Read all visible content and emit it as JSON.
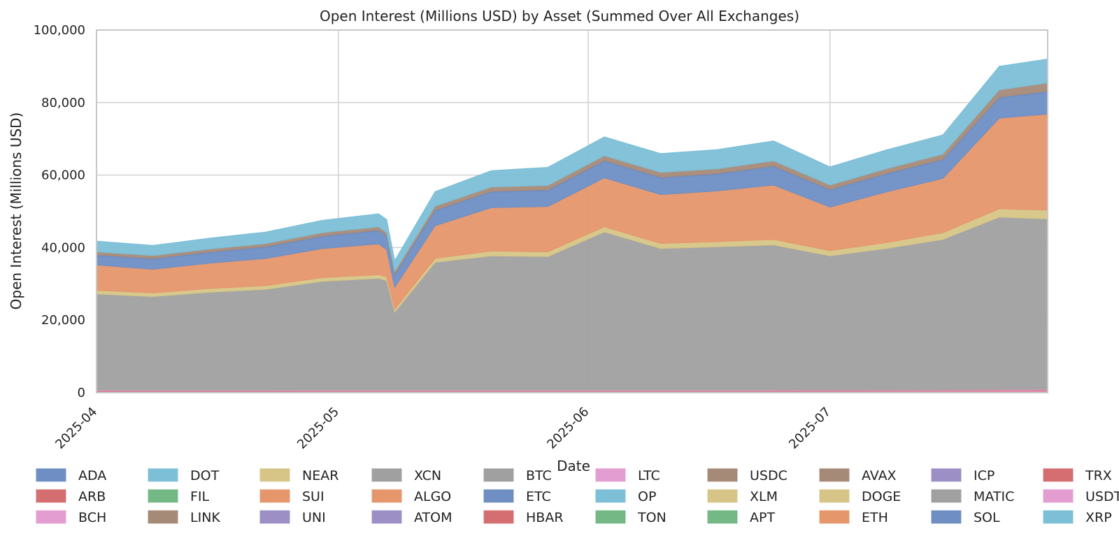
{
  "chart_data": {
    "type": "area",
    "stacked": true,
    "title": "Open Interest (Millions USD) by Asset (Summed Over All Exchanges)",
    "xlabel": "Date",
    "ylabel": "Open Interest (Millions USD)",
    "x_ticks": [
      "2025-04",
      "2025-05",
      "2025-06",
      "2025-07"
    ],
    "y_ticks": [
      "0",
      "20,000",
      "40,000",
      "60,000",
      "80,000",
      "100,000"
    ],
    "ylim": [
      0,
      100000
    ],
    "x_range_days": [
      0,
      118
    ],
    "grid": true,
    "legend_position": "bottom",
    "anchor_days": [
      0,
      7,
      14,
      21,
      28,
      35,
      36,
      37,
      42,
      49,
      56,
      63,
      70,
      77,
      84,
      91,
      98,
      105,
      112,
      118
    ],
    "series": [
      {
        "name": "BCH",
        "color": "#e49dd0",
        "values": [
          300,
          300,
          300,
          300,
          320,
          320,
          320,
          320,
          330,
          330,
          330,
          330,
          330,
          330,
          340,
          350,
          360,
          380,
          400,
          420
        ]
      },
      {
        "name": "HBAR",
        "color": "#d46e71",
        "values": [
          200,
          200,
          200,
          200,
          200,
          200,
          200,
          200,
          200,
          200,
          200,
          200,
          200,
          200,
          200,
          200,
          200,
          200,
          250,
          250
        ]
      },
      {
        "name": "USDT",
        "color": "#e49dd0",
        "values": [
          200,
          200,
          200,
          200,
          200,
          200,
          200,
          200,
          200,
          200,
          200,
          200,
          200,
          200,
          200,
          200,
          200,
          200,
          250,
          250
        ]
      },
      {
        "name": "BTC",
        "color": "#a0a0a0",
        "values": [
          26500,
          25800,
          27000,
          27800,
          30000,
          30800,
          30200,
          21500,
          35200,
          37000,
          36800,
          43600,
          39000,
          39500,
          40000,
          37000,
          39000,
          41500,
          47500,
          47000
        ]
      },
      {
        "name": "DOGE",
        "color": "#d6c586",
        "values": [
          1000,
          1000,
          1000,
          1000,
          1000,
          1000,
          1000,
          800,
          1100,
          1300,
          1300,
          1400,
          1400,
          1400,
          1500,
          1400,
          1600,
          1800,
          2300,
          2400
        ]
      },
      {
        "name": "ETH",
        "color": "#e5966b",
        "values": [
          7000,
          6500,
          7000,
          7500,
          8000,
          8500,
          7500,
          6000,
          9000,
          12000,
          12500,
          13500,
          13500,
          14000,
          15000,
          12000,
          14000,
          15000,
          25000,
          26500
        ]
      },
      {
        "name": "SOL",
        "color": "#6e8ec4",
        "values": [
          2500,
          2700,
          2800,
          3000,
          3200,
          3500,
          3500,
          3300,
          4000,
          4200,
          4300,
          4500,
          4500,
          4500,
          5000,
          4600,
          4800,
          5000,
          5500,
          6000
        ]
      },
      {
        "name": "ETC",
        "color": "#6e8ec4",
        "values": [
          300,
          300,
          300,
          300,
          300,
          300,
          300,
          300,
          300,
          300,
          300,
          300,
          300,
          300,
          300,
          300,
          300,
          300,
          300,
          300
        ]
      },
      {
        "name": "LINK",
        "color": "#a68a78",
        "values": [
          800,
          800,
          800,
          800,
          900,
          900,
          900,
          800,
          1100,
          1200,
          1200,
          1300,
          1300,
          1300,
          1400,
          1200,
          1300,
          1400,
          2000,
          2300
        ]
      },
      {
        "name": "XRP",
        "color": "#7cbfd6",
        "values": [
          3000,
          2800,
          3000,
          3200,
          3400,
          3600,
          3600,
          3000,
          4000,
          4500,
          5000,
          5200,
          5200,
          5300,
          5500,
          5000,
          5200,
          5300,
          6500,
          6600
        ]
      }
    ],
    "legend": [
      "ADA",
      "ARB",
      "BCH",
      "DOT",
      "FIL",
      "LINK",
      "NEAR",
      "SUI",
      "UNI",
      "XCN",
      "ALGO",
      "ATOM",
      "BTC",
      "ETC",
      "HBAR",
      "LTC",
      "OP",
      "TON",
      "USDC",
      "XLM",
      "APT",
      "AVAX",
      "DOGE",
      "ETH",
      "ICP",
      "MATIC",
      "SOL",
      "TRX",
      "USDT",
      "XRP"
    ],
    "legend_colors": [
      "#6e8ec4",
      "#d46e71",
      "#e49dd0",
      "#7cbfd6",
      "#74b886",
      "#a68a78",
      "#d6c586",
      "#e5966b",
      "#9c8fc5",
      "#a0a0a0",
      "#e5966b",
      "#9c8fc5",
      "#a0a0a0",
      "#6e8ec4",
      "#d46e71",
      "#e49dd0",
      "#7cbfd6",
      "#74b886",
      "#a68a78",
      "#d6c586",
      "#74b886",
      "#a68a78",
      "#d6c586",
      "#e5966b",
      "#9c8fc5",
      "#a0a0a0",
      "#6e8ec4",
      "#d46e71",
      "#e49dd0",
      "#7cbfd6"
    ]
  }
}
